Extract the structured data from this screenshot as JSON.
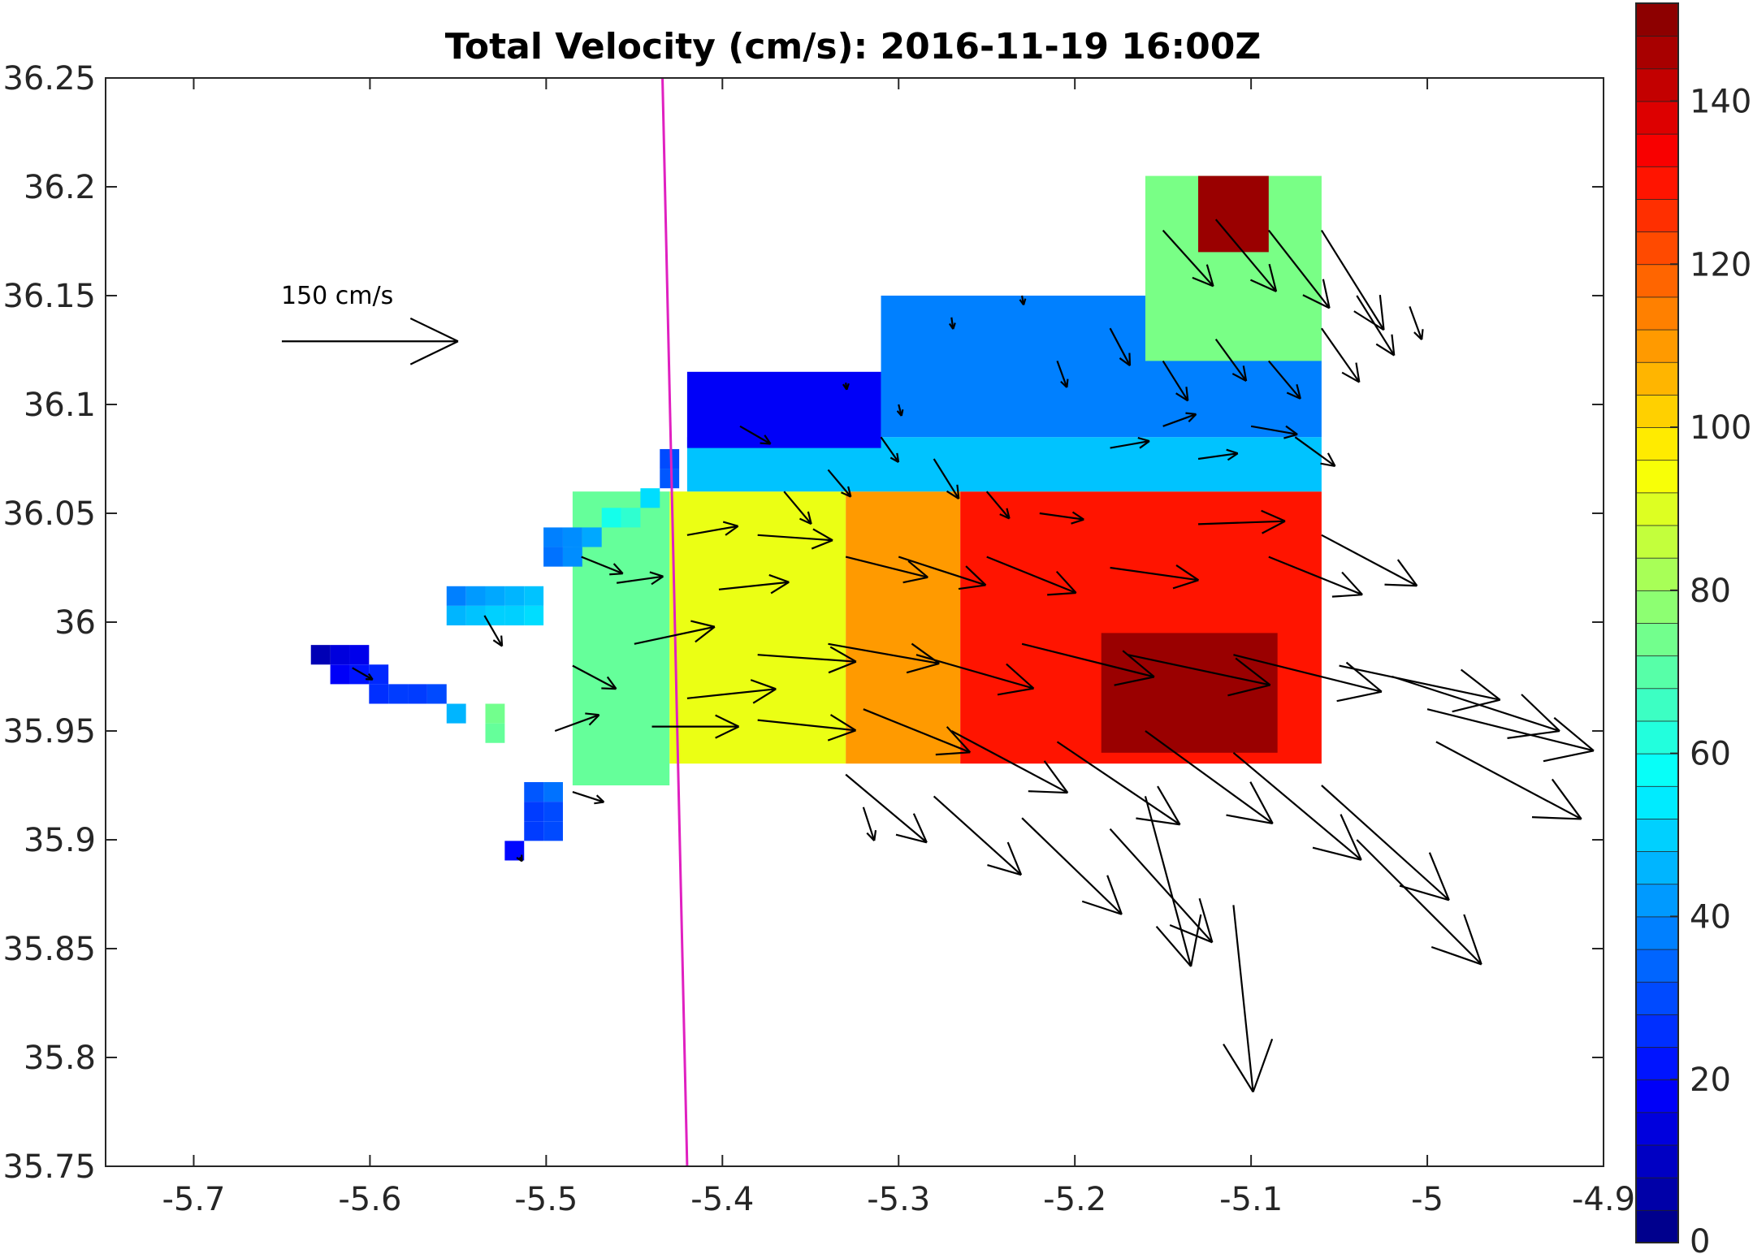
{
  "chart_data": {
    "type": "heatmap",
    "title": "Total Velocity (cm/s): 2016-11-19 16:00Z",
    "xlabel": "",
    "ylabel": "",
    "xlim": [
      -5.75,
      -4.9
    ],
    "ylim": [
      35.75,
      36.25
    ],
    "x_ticks": [
      "-5.7",
      "-5.6",
      "-5.5",
      "-5.4",
      "-5.3",
      "-5.2",
      "-5.1",
      "-5",
      "-4.9"
    ],
    "y_ticks": [
      "35.75",
      "35.8",
      "35.85",
      "35.9",
      "35.95",
      "36",
      "36.05",
      "36.1",
      "36.15",
      "36.2",
      "36.25"
    ],
    "grid": false,
    "colorbar": {
      "range": [
        0,
        152
      ],
      "ticks": [
        "0",
        "20",
        "40",
        "60",
        "80",
        "100",
        "120",
        "140"
      ],
      "colormap": "jet"
    },
    "reference_vector": {
      "label": "150 cm/s",
      "speed": 150
    },
    "line": {
      "color": "#e020c0",
      "points": [
        [
          -5.434,
          36.25
        ],
        [
          -5.42,
          35.75
        ]
      ]
    },
    "cell_size": [
      0.011,
      0.009
    ],
    "cells": [
      [
        -5.628,
        35.985,
        8
      ],
      [
        -5.617,
        35.985,
        14
      ],
      [
        -5.606,
        35.985,
        16
      ],
      [
        -5.617,
        35.976,
        18
      ],
      [
        -5.606,
        35.976,
        22
      ],
      [
        -5.595,
        35.976,
        25
      ],
      [
        -5.595,
        35.967,
        26
      ],
      [
        -5.584,
        35.967,
        28
      ],
      [
        -5.573,
        35.967,
        28
      ],
      [
        -5.562,
        35.967,
        30
      ],
      [
        -5.551,
        35.958,
        46
      ],
      [
        -5.529,
        35.958,
        74
      ],
      [
        -5.529,
        35.949,
        72
      ],
      [
        -5.518,
        35.895,
        20
      ],
      [
        -5.507,
        35.913,
        28
      ],
      [
        -5.496,
        35.913,
        30
      ],
      [
        -5.507,
        35.904,
        28
      ],
      [
        -5.496,
        35.904,
        30
      ],
      [
        -5.507,
        35.922,
        32
      ],
      [
        -5.496,
        35.922,
        36
      ],
      [
        -5.551,
        36.012,
        38
      ],
      [
        -5.54,
        36.012,
        42
      ],
      [
        -5.529,
        36.012,
        44
      ],
      [
        -5.518,
        36.012,
        46
      ],
      [
        -5.507,
        36.012,
        48
      ],
      [
        -5.551,
        36.003,
        46
      ],
      [
        -5.54,
        36.003,
        48
      ],
      [
        -5.529,
        36.003,
        50
      ],
      [
        -5.518,
        36.003,
        50
      ],
      [
        -5.507,
        36.003,
        52
      ],
      [
        -5.496,
        36.039,
        38
      ],
      [
        -5.485,
        36.039,
        40
      ],
      [
        -5.474,
        36.039,
        44
      ],
      [
        -5.496,
        36.03,
        36
      ],
      [
        -5.485,
        36.03,
        40
      ],
      [
        -5.463,
        36.048,
        60
      ],
      [
        -5.452,
        36.048,
        64
      ],
      [
        -5.441,
        36.057,
        52
      ],
      [
        -5.43,
        36.066,
        32
      ],
      [
        -5.43,
        36.075,
        30
      ]
    ],
    "regions": [
      {
        "x0": -5.485,
        "x1": -5.43,
        "y0": 35.925,
        "y1": 36.06,
        "v": 72
      },
      {
        "x0": -5.43,
        "x1": -5.33,
        "y0": 35.935,
        "y1": 36.06,
        "v": 92
      },
      {
        "x0": -5.33,
        "x1": -5.265,
        "y0": 35.935,
        "y1": 36.06,
        "v": 110
      },
      {
        "x0": -5.265,
        "x1": -5.06,
        "y0": 35.935,
        "y1": 36.06,
        "v": 130
      },
      {
        "x0": -5.185,
        "x1": -5.085,
        "y0": 35.94,
        "y1": 35.995,
        "v": 148
      },
      {
        "x0": -5.42,
        "x1": -5.06,
        "y0": 36.06,
        "y1": 36.085,
        "v": 48
      },
      {
        "x0": -5.42,
        "x1": -5.31,
        "y0": 36.08,
        "y1": 36.115,
        "v": 18
      },
      {
        "x0": -5.31,
        "x1": -5.06,
        "y0": 36.085,
        "y1": 36.15,
        "v": 38
      },
      {
        "x0": -5.16,
        "x1": -5.06,
        "y0": 36.12,
        "y1": 36.205,
        "v": 75
      },
      {
        "x0": -5.13,
        "x1": -5.09,
        "y0": 36.17,
        "y1": 36.205,
        "v": 148
      }
    ],
    "vectors": [
      [
        -5.515,
        35.892,
        4,
        -60
      ],
      [
        -5.485,
        35.922,
        28,
        -18
      ],
      [
        -5.535,
        36.003,
        30,
        -60
      ],
      [
        -5.61,
        35.979,
        20,
        -30
      ],
      [
        -5.495,
        35.95,
        40,
        20
      ],
      [
        -5.485,
        35.98,
        42,
        -28
      ],
      [
        -5.48,
        36.03,
        38,
        -22
      ],
      [
        -5.46,
        36.018,
        40,
        8
      ],
      [
        -5.42,
        36.04,
        44,
        10
      ],
      [
        -5.402,
        36.015,
        60,
        6
      ],
      [
        -5.38,
        36.04,
        64,
        -4
      ],
      [
        -5.33,
        36.03,
        72,
        -14
      ],
      [
        -5.3,
        36.03,
        78,
        -18
      ],
      [
        -5.25,
        36.03,
        82,
        -22
      ],
      [
        -5.18,
        36.025,
        76,
        -8
      ],
      [
        -5.13,
        36.045,
        74,
        2
      ],
      [
        -5.09,
        36.03,
        86,
        -22
      ],
      [
        -5.06,
        36.04,
        92,
        -28
      ],
      [
        -5.45,
        35.99,
        70,
        12
      ],
      [
        -5.42,
        35.965,
        76,
        6
      ],
      [
        -5.38,
        35.985,
        84,
        -4
      ],
      [
        -5.34,
        35.99,
        96,
        -10
      ],
      [
        -5.29,
        35.985,
        104,
        -16
      ],
      [
        -5.23,
        35.99,
        116,
        -14
      ],
      [
        -5.17,
        35.985,
        124,
        -12
      ],
      [
        -5.11,
        35.985,
        130,
        -14
      ],
      [
        -5.05,
        35.98,
        140,
        -12
      ],
      [
        -5.02,
        35.975,
        150,
        -18
      ],
      [
        -5.0,
        35.96,
        146,
        -14
      ],
      [
        -4.995,
        35.945,
        140,
        -28
      ],
      [
        -5.44,
        35.952,
        74,
        0
      ],
      [
        -5.38,
        35.955,
        84,
        -6
      ],
      [
        -5.32,
        35.96,
        98,
        -22
      ],
      [
        -5.27,
        35.95,
        112,
        -28
      ],
      [
        -5.21,
        35.945,
        126,
        -34
      ],
      [
        -5.16,
        35.95,
        134,
        -36
      ],
      [
        -5.11,
        35.94,
        142,
        -40
      ],
      [
        -5.06,
        35.925,
        146,
        -42
      ],
      [
        -5.04,
        35.9,
        150,
        -45
      ],
      [
        -5.16,
        35.92,
        150,
        -75
      ],
      [
        -5.11,
        35.87,
        160,
        -84
      ],
      [
        -5.33,
        35.93,
        90,
        -40
      ],
      [
        -5.28,
        35.92,
        100,
        -42
      ],
      [
        -5.23,
        35.91,
        118,
        -44
      ],
      [
        -5.18,
        35.905,
        130,
        -48
      ],
      [
        -5.32,
        35.915,
        30,
        -72
      ],
      [
        -5.39,
        36.09,
        30,
        -30
      ],
      [
        -5.365,
        36.06,
        36,
        -50
      ],
      [
        -5.34,
        36.07,
        30,
        -50
      ],
      [
        -5.31,
        36.085,
        26,
        -55
      ],
      [
        -5.28,
        36.075,
        40,
        -58
      ],
      [
        -5.25,
        36.06,
        30,
        -50
      ],
      [
        -5.22,
        36.05,
        38,
        -8
      ],
      [
        -5.18,
        36.08,
        34,
        10
      ],
      [
        -5.15,
        36.09,
        30,
        20
      ],
      [
        -5.13,
        36.075,
        34,
        8
      ],
      [
        -5.1,
        36.09,
        40,
        -10
      ],
      [
        -5.075,
        36.085,
        42,
        -36
      ],
      [
        -5.21,
        36.12,
        24,
        -70
      ],
      [
        -5.18,
        36.135,
        36,
        -62
      ],
      [
        -5.15,
        36.12,
        40,
        -58
      ],
      [
        -5.12,
        36.13,
        44,
        -54
      ],
      [
        -5.09,
        36.12,
        42,
        -50
      ],
      [
        -5.06,
        36.135,
        56,
        -55
      ],
      [
        -5.04,
        36.15,
        60,
        -58
      ],
      [
        -5.01,
        36.145,
        30,
        -70
      ],
      [
        -5.15,
        36.18,
        64,
        -48
      ],
      [
        -5.12,
        36.185,
        80,
        -50
      ],
      [
        -5.09,
        36.18,
        84,
        -52
      ],
      [
        -5.06,
        36.18,
        100,
        -58
      ],
      [
        -5.23,
        36.15,
        8,
        -80
      ],
      [
        -5.27,
        36.14,
        10,
        -82
      ],
      [
        -5.3,
        36.1,
        10,
        -76
      ],
      [
        -5.33,
        36.11,
        6,
        -82
      ]
    ]
  }
}
